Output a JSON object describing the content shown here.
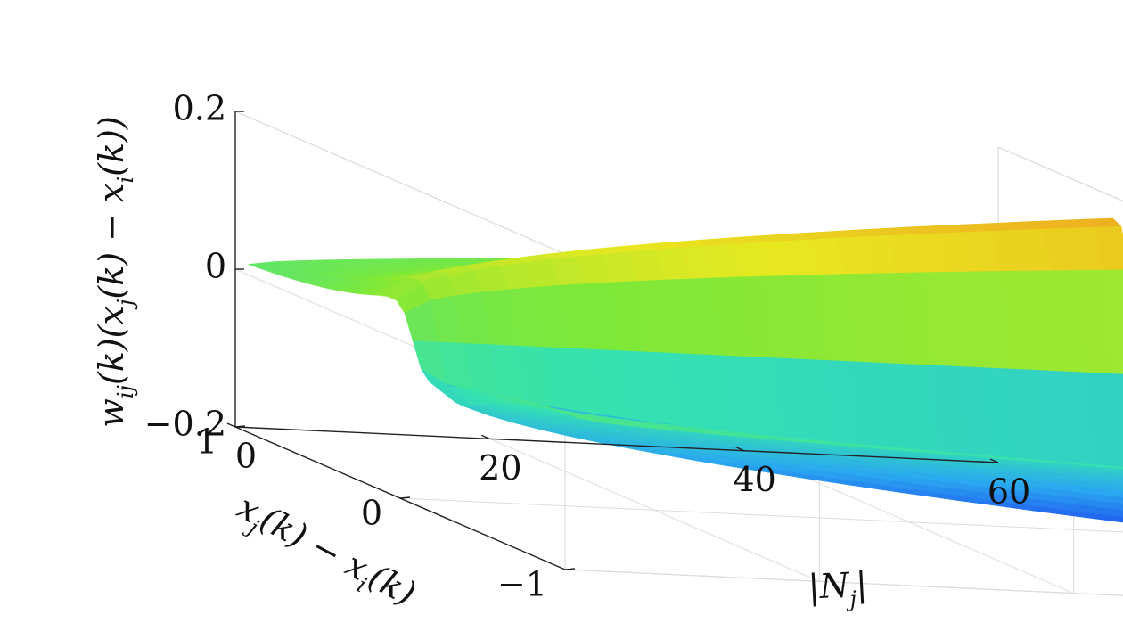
{
  "chart_data": {
    "type": "surface",
    "title": "",
    "xlabel": "|N_j|",
    "ylabel": "x_j(k) − x_i(k)",
    "zlabel": "w_ij(k)(x_j(k) − x_i(k))",
    "axis_labels": {
      "x": {
        "main": "|N",
        "sub": "j",
        "tail": "|"
      },
      "y": {
        "parts": [
          {
            "t": "x",
            "s": "j"
          },
          {
            "t": "(k) − "
          },
          {
            "t": "x",
            "s": "i"
          },
          {
            "t": "(k)"
          }
        ]
      },
      "z": {
        "parts": [
          {
            "t": "w",
            "s": "ij"
          },
          {
            "t": "(k)("
          },
          {
            "t": "x",
            "s": "j"
          },
          {
            "t": "(k) − "
          },
          {
            "t": "x",
            "s": "i"
          },
          {
            "t": "(k))"
          }
        ]
      }
    },
    "xlim": [
      0,
      60
    ],
    "ylim": [
      -1,
      1
    ],
    "zlim": [
      -0.2,
      0.2
    ],
    "x_ticks": [
      0,
      20,
      40,
      60
    ],
    "y_ticks": [
      -1,
      0,
      1
    ],
    "z_ticks": [
      -0.2,
      0,
      0.2
    ],
    "x_tick_labels": [
      "0",
      "20",
      "40",
      "60"
    ],
    "y_tick_labels": [
      "−1",
      "0",
      "1"
    ],
    "z_tick_labels": [
      "−0.2",
      "0",
      "0.2"
    ],
    "grid": true,
    "colormap": [
      "#1f3ef0",
      "#2aa8f0",
      "#35e2b0",
      "#7ee838",
      "#e8e820",
      "#f0a020"
    ],
    "surface": {
      "x_range": [
        1,
        58
      ],
      "y_range": [
        -1,
        1
      ],
      "x_samples": 29,
      "y_samples": 41,
      "description_free": true,
      "peak": {
        "x": 58,
        "y": 0.05,
        "z": 0.2
      },
      "trough": {
        "x": 58,
        "y": -0.05,
        "z": -0.2
      },
      "plateau_low_x": 0.0,
      "plateau_high_x_z": 0.03
    }
  }
}
